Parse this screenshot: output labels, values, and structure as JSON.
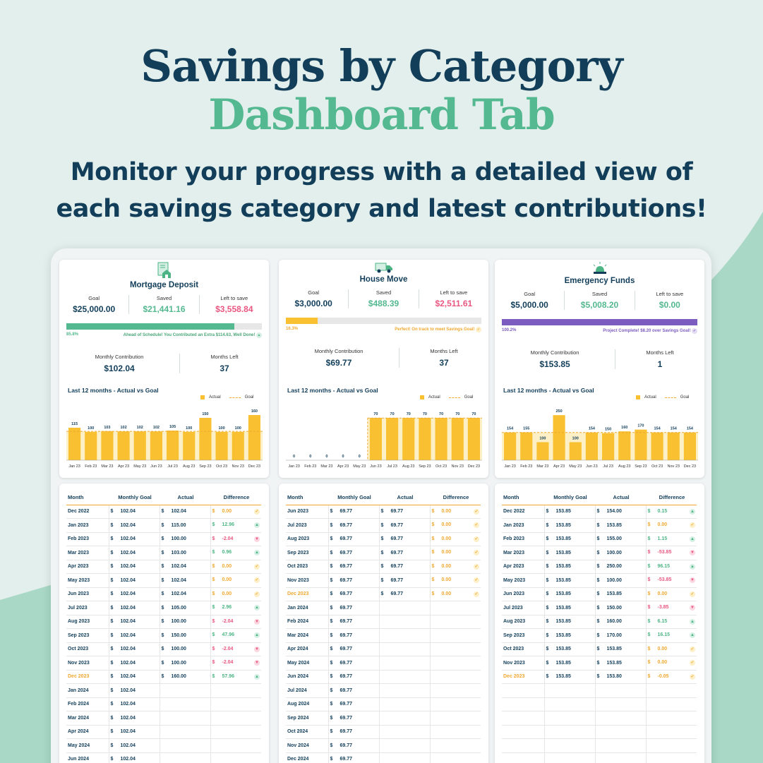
{
  "header": {
    "title": "Savings by Category",
    "subtitle": "Dashboard Tab",
    "description_1": "Monitor your progress with a detailed view of",
    "description_2": "each savings category and latest contributions!"
  },
  "colors": {
    "navy": "#123e5a",
    "green": "#54b890",
    "pink": "#e95781",
    "yellow": "#f9c131",
    "purple": "#7c5cbf"
  },
  "categories": [
    {
      "name": "Mortgage Deposit",
      "icon": "house-document-icon",
      "goal_label": "Goal",
      "goal": "$25,000.00",
      "saved_label": "Saved",
      "saved": "$21,441.16",
      "left_label": "Left to save",
      "left": "$3,558.84",
      "progress": 0.858,
      "progress_label": "85.8%",
      "bar_color": "#54b890",
      "status": "Ahead of Schedule! You Contributed an Extra $114.63, Well Done!",
      "status_color": "#4aa678",
      "status_icon": "arrow-up-icon",
      "monthly_label": "Monthly Contribution",
      "monthly": "$102.04",
      "months_left_label": "Months Left",
      "months_left": "37",
      "chart_title": "Last 12 months - Actual vs Goal",
      "table_headers": [
        "Month",
        "Monthly Goal",
        "Actual",
        "Difference"
      ],
      "rows": [
        {
          "month": "Dec 2022",
          "goal": "102.04",
          "actual": "102.04",
          "diff": "0.00",
          "t": "ok"
        },
        {
          "month": "Jan 2023",
          "goal": "102.04",
          "actual": "115.00",
          "diff": "12.96",
          "t": "up"
        },
        {
          "month": "Feb 2023",
          "goal": "102.04",
          "actual": "100.00",
          "diff": "-2.04",
          "t": "dn"
        },
        {
          "month": "Mar 2023",
          "goal": "102.04",
          "actual": "103.00",
          "diff": "0.96",
          "t": "up"
        },
        {
          "month": "Apr 2023",
          "goal": "102.04",
          "actual": "102.04",
          "diff": "0.00",
          "t": "ok"
        },
        {
          "month": "May 2023",
          "goal": "102.04",
          "actual": "102.04",
          "diff": "0.00",
          "t": "ok"
        },
        {
          "month": "Jun 2023",
          "goal": "102.04",
          "actual": "102.04",
          "diff": "0.00",
          "t": "ok"
        },
        {
          "month": "Jul 2023",
          "goal": "102.04",
          "actual": "105.00",
          "diff": "2.96",
          "t": "up"
        },
        {
          "month": "Aug 2023",
          "goal": "102.04",
          "actual": "100.00",
          "diff": "-2.04",
          "t": "dn"
        },
        {
          "month": "Sep 2023",
          "goal": "102.04",
          "actual": "150.00",
          "diff": "47.96",
          "t": "up"
        },
        {
          "month": "Oct 2023",
          "goal": "102.04",
          "actual": "100.00",
          "diff": "-2.04",
          "t": "dn"
        },
        {
          "month": "Nov 2023",
          "goal": "102.04",
          "actual": "100.00",
          "diff": "-2.04",
          "t": "dn"
        },
        {
          "month": "Dec 2023",
          "goal": "102.04",
          "actual": "160.00",
          "diff": "57.96",
          "t": "up",
          "cur": true
        },
        {
          "month": "Jan 2024",
          "goal": "102.04"
        },
        {
          "month": "Feb 2024",
          "goal": "102.04"
        },
        {
          "month": "Mar 2024",
          "goal": "102.04"
        },
        {
          "month": "Apr 2024",
          "goal": "102.04"
        },
        {
          "month": "May 2024",
          "goal": "102.04"
        },
        {
          "month": "Jun 2024",
          "goal": "102.04"
        }
      ]
    },
    {
      "name": "House Move",
      "icon": "moving-truck-icon",
      "goal_label": "Goal",
      "goal": "$3,000.00",
      "saved_label": "Saved",
      "saved": "$488.39",
      "left_label": "Left to save",
      "left": "$2,511.61",
      "progress": 0.163,
      "progress_label": "16.3%",
      "bar_color": "#f9c131",
      "status": "Perfect! On track to meet Savings Goal!",
      "status_color": "#f0a830",
      "status_icon": "check-icon",
      "monthly_label": "Monthly Contribution",
      "monthly": "$69.77",
      "months_left_label": "Months Left",
      "months_left": "37",
      "chart_title": "Last 12 months - Actual vs Goal",
      "table_headers": [
        "Month",
        "Monthly Goal",
        "Actual",
        "Difference"
      ],
      "rows": [
        {
          "month": "Jun 2023",
          "goal": "69.77",
          "actual": "69.77",
          "diff": "0.00",
          "t": "ok"
        },
        {
          "month": "Jul 2023",
          "goal": "69.77",
          "actual": "69.77",
          "diff": "0.00",
          "t": "ok"
        },
        {
          "month": "Aug 2023",
          "goal": "69.77",
          "actual": "69.77",
          "diff": "0.00",
          "t": "ok"
        },
        {
          "month": "Sep 2023",
          "goal": "69.77",
          "actual": "69.77",
          "diff": "0.00",
          "t": "ok"
        },
        {
          "month": "Oct 2023",
          "goal": "69.77",
          "actual": "69.77",
          "diff": "0.00",
          "t": "ok"
        },
        {
          "month": "Nov 2023",
          "goal": "69.77",
          "actual": "69.77",
          "diff": "0.00",
          "t": "ok"
        },
        {
          "month": "Dec 2023",
          "goal": "69.77",
          "actual": "69.77",
          "diff": "0.00",
          "t": "ok",
          "cur": true
        },
        {
          "month": "Jan 2024",
          "goal": "69.77"
        },
        {
          "month": "Feb 2024",
          "goal": "69.77"
        },
        {
          "month": "Mar 2024",
          "goal": "69.77"
        },
        {
          "month": "Apr 2024",
          "goal": "69.77"
        },
        {
          "month": "May 2024",
          "goal": "69.77"
        },
        {
          "month": "Jun 2024",
          "goal": "69.77"
        },
        {
          "month": "Jul 2024",
          "goal": "69.77"
        },
        {
          "month": "Aug 2024",
          "goal": "69.77"
        },
        {
          "month": "Sep 2024",
          "goal": "69.77"
        },
        {
          "month": "Oct 2024",
          "goal": "69.77"
        },
        {
          "month": "Nov 2024",
          "goal": "69.77"
        },
        {
          "month": "Dec 2024",
          "goal": "69.77"
        }
      ]
    },
    {
      "name": "Emergency Funds",
      "icon": "alarm-light-icon",
      "goal_label": "Goal",
      "goal": "$5,000.00",
      "saved_label": "Saved",
      "saved": "$5,008.20",
      "left_label": "Left to save",
      "left": "$0.00",
      "progress": 1.0,
      "progress_label": "100.2%",
      "bar_color": "#7c5cbf",
      "status": "Project Complete! $8.20 over Savings Goal!",
      "status_color": "#7c5cbf",
      "status_icon": "check-icon",
      "monthly_label": "Monthly Contribution",
      "monthly": "$153.85",
      "months_left_label": "Months Left",
      "months_left": "1",
      "chart_title": "Last 12 months - Actual vs Goal",
      "table_headers": [
        "Month",
        "Monthly Goal",
        "Actual",
        "Difference"
      ],
      "rows": [
        {
          "month": "Dec 2022",
          "goal": "153.85",
          "actual": "154.00",
          "diff": "0.15",
          "t": "up"
        },
        {
          "month": "Jan 2023",
          "goal": "153.85",
          "actual": "153.85",
          "diff": "0.00",
          "t": "ok"
        },
        {
          "month": "Feb 2023",
          "goal": "153.85",
          "actual": "155.00",
          "diff": "1.15",
          "t": "up"
        },
        {
          "month": "Mar 2023",
          "goal": "153.85",
          "actual": "100.00",
          "diff": "-53.85",
          "t": "dn"
        },
        {
          "month": "Apr 2023",
          "goal": "153.85",
          "actual": "250.00",
          "diff": "96.15",
          "t": "up"
        },
        {
          "month": "May 2023",
          "goal": "153.85",
          "actual": "100.00",
          "diff": "-53.85",
          "t": "dn"
        },
        {
          "month": "Jun 2023",
          "goal": "153.85",
          "actual": "153.85",
          "diff": "0.00",
          "t": "ok"
        },
        {
          "month": "Jul 2023",
          "goal": "153.85",
          "actual": "150.00",
          "diff": "-3.85",
          "t": "dn"
        },
        {
          "month": "Aug 2023",
          "goal": "153.85",
          "actual": "160.00",
          "diff": "6.15",
          "t": "up"
        },
        {
          "month": "Sep 2023",
          "goal": "153.85",
          "actual": "170.00",
          "diff": "16.15",
          "t": "up"
        },
        {
          "month": "Oct 2023",
          "goal": "153.85",
          "actual": "153.85",
          "diff": "0.00",
          "t": "ok"
        },
        {
          "month": "Nov 2023",
          "goal": "153.85",
          "actual": "153.85",
          "diff": "0.00",
          "t": "ok"
        },
        {
          "month": "Dec 2023",
          "goal": "153.85",
          "actual": "153.80",
          "diff": "-0.05",
          "t": "ok",
          "cur": true
        },
        {},
        {},
        {},
        {},
        {},
        {}
      ]
    }
  ],
  "chart_data": [
    {
      "type": "bar",
      "title": "Last 12 months - Actual vs Goal",
      "categories": [
        "Jan 23",
        "Feb 23",
        "Mar 23",
        "Apr 23",
        "May 23",
        "Jun 23",
        "Jul 23",
        "Aug 23",
        "Sep 23",
        "Oct 23",
        "Nov 23",
        "Dec 23"
      ],
      "series": [
        {
          "name": "Actual",
          "values": [
            115,
            100,
            103,
            102,
            102,
            102,
            105,
            100,
            150,
            100,
            100,
            160
          ]
        },
        {
          "name": "Goal",
          "values": [
            102.04,
            102.04,
            102.04,
            102.04,
            102.04,
            102.04,
            102.04,
            102.04,
            102.04,
            102.04,
            102.04,
            102.04
          ]
        }
      ],
      "ylim": [
        0,
        180
      ],
      "legend": "top-right",
      "goal_from_index": 0
    },
    {
      "type": "bar",
      "title": "Last 12 months - Actual vs Goal",
      "categories": [
        "Jan 23",
        "Feb 23",
        "Mar 23",
        "Apr 23",
        "May 23",
        "Jun 23",
        "Jul 23",
        "Aug 23",
        "Sep 23",
        "Oct 23",
        "Nov 23",
        "Dec 23"
      ],
      "series": [
        {
          "name": "Actual",
          "values": [
            0,
            0,
            0,
            0,
            0,
            70,
            70,
            70,
            70,
            70,
            70,
            70
          ]
        },
        {
          "name": "Goal",
          "values": [
            null,
            null,
            null,
            null,
            null,
            69.77,
            69.77,
            69.77,
            69.77,
            69.77,
            69.77,
            69.77
          ]
        }
      ],
      "ylim": [
        0,
        84
      ],
      "legend": "top-right",
      "goal_from_index": 5
    },
    {
      "type": "bar",
      "title": "Last 12 months - Actual vs Goal",
      "categories": [
        "Jan 23",
        "Feb 23",
        "Mar 23",
        "Apr 23",
        "May 23",
        "Jun 23",
        "Jul 23",
        "Aug 23",
        "Sep 23",
        "Oct 23",
        "Nov 23",
        "Dec 23"
      ],
      "series": [
        {
          "name": "Actual",
          "values": [
            154,
            155,
            100,
            250,
            100,
            154,
            150,
            160,
            170,
            154,
            154,
            154
          ]
        },
        {
          "name": "Goal",
          "values": [
            153.85,
            153.85,
            153.85,
            153.85,
            153.85,
            153.85,
            153.85,
            153.85,
            153.85,
            153.85,
            153.85,
            153.85
          ]
        }
      ],
      "ylim": [
        0,
        282
      ],
      "legend": "top-right",
      "goal_from_index": 0
    }
  ],
  "legend": {
    "actual": "Actual",
    "goal": "Goal"
  },
  "currency": "$"
}
